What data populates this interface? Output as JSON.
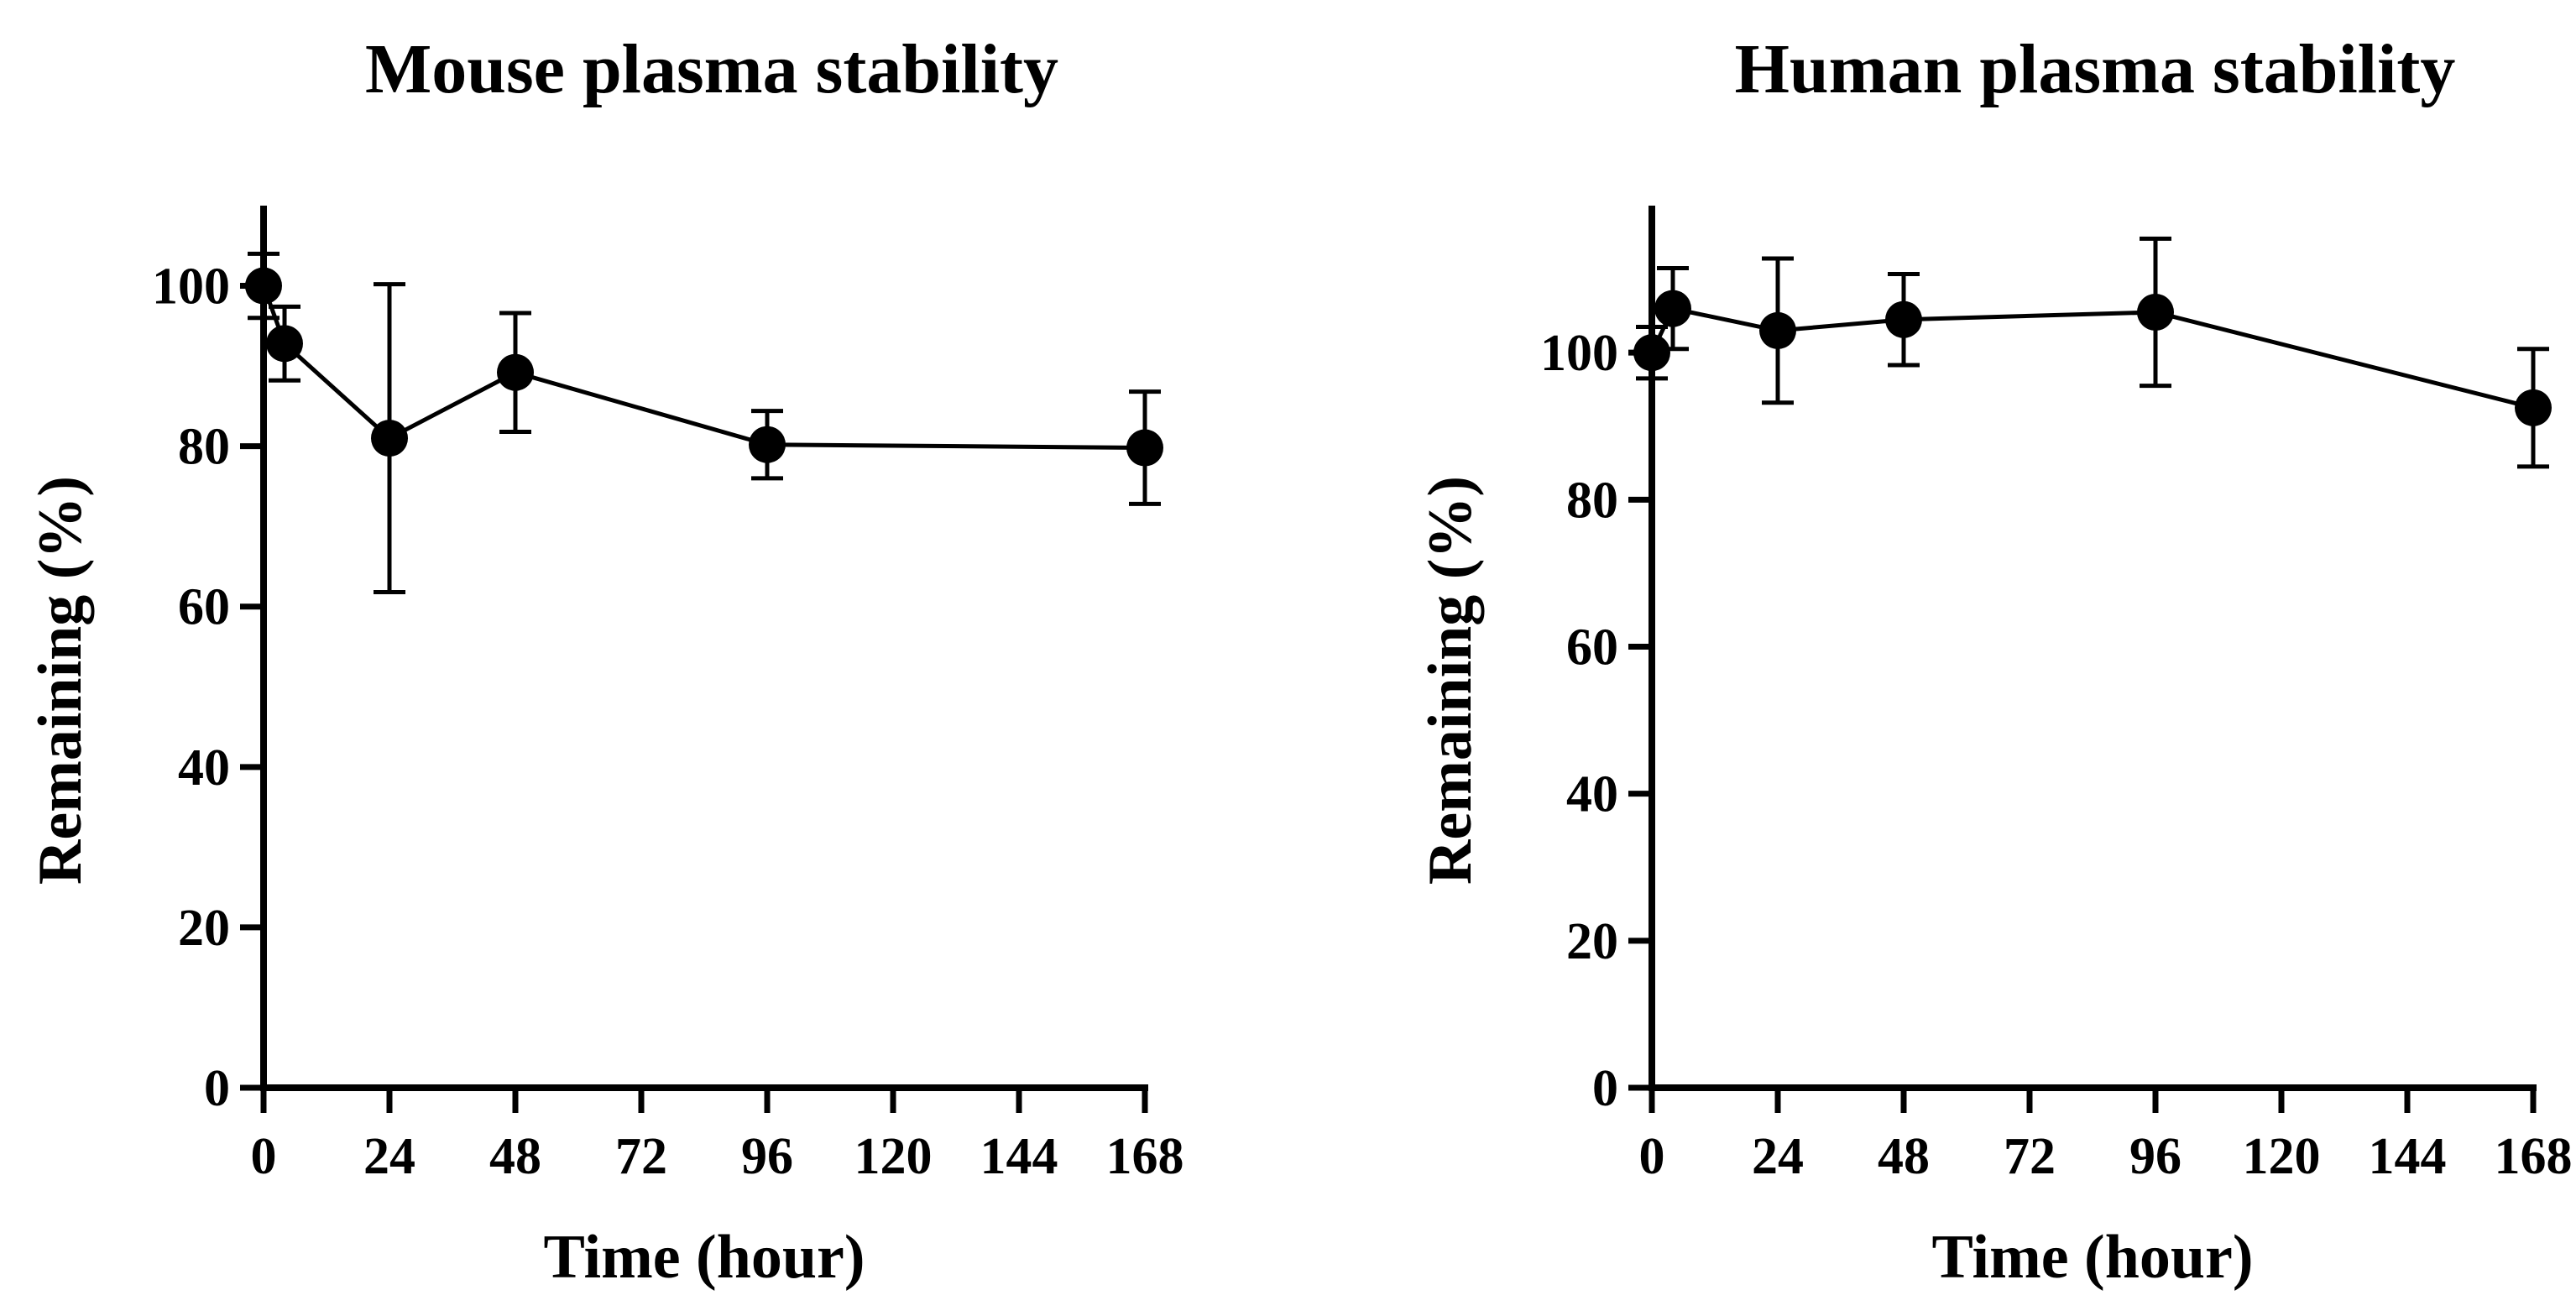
{
  "chart_data": [
    {
      "type": "line",
      "title": "Mouse plasma stability",
      "xlabel": "Time (hour)",
      "ylabel": "Remaining (%)",
      "xlim": [
        0,
        168
      ],
      "ylim": [
        0,
        110
      ],
      "xticks": [
        0,
        24,
        48,
        72,
        96,
        120,
        144,
        168
      ],
      "yticks": [
        0,
        20,
        40,
        60,
        80,
        100
      ],
      "series": [
        {
          "name": "Mouse plasma",
          "x": [
            0,
            4,
            24,
            48,
            96,
            168
          ],
          "y": [
            100,
            92.8,
            81,
            89.2,
            80.2,
            79.8
          ],
          "error": [
            4,
            4.6,
            19.2,
            7.4,
            4.2,
            7
          ]
        }
      ]
    },
    {
      "type": "line",
      "title": "Human plasma stability",
      "xlabel": "Time (hour)",
      "ylabel": "Remaining (%)",
      "xlim": [
        0,
        168
      ],
      "ylim": [
        0,
        120
      ],
      "xticks": [
        0,
        24,
        48,
        72,
        96,
        120,
        144,
        168
      ],
      "yticks": [
        0,
        20,
        40,
        60,
        80,
        100
      ],
      "series": [
        {
          "name": "Human plasma",
          "x": [
            0,
            4,
            24,
            48,
            96,
            168
          ],
          "y": [
            100,
            106,
            103,
            104.5,
            105.5,
            92.5
          ],
          "error": [
            3.5,
            5.5,
            9.8,
            6.2,
            10,
            8
          ]
        }
      ]
    }
  ],
  "colors": {
    "ink": "#000000",
    "background": "#ffffff"
  }
}
